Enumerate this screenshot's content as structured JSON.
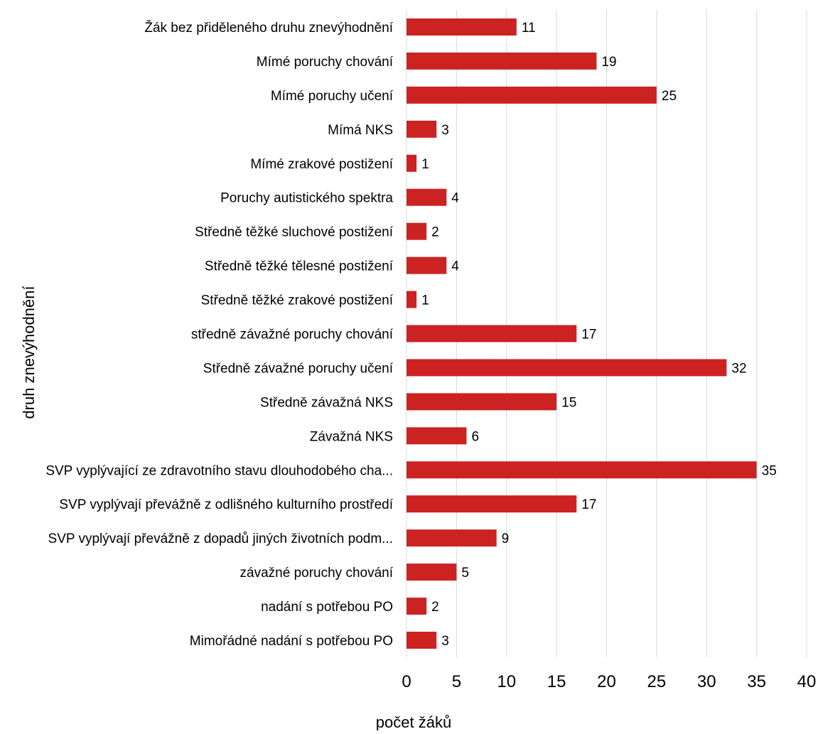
{
  "chart_data": {
    "type": "bar",
    "orientation": "horizontal",
    "categories": [
      "Žák bez přiděleného druhu znevýhodnění",
      "Mímé poruchy chování",
      "Mímé poruchy učení",
      "Mímá NKS",
      "Mímé zrakové postižení",
      "Poruchy autistického spektra",
      "Středně těžké sluchové postižení",
      "Středně těžké tělesné postižení",
      "Středně těžké zrakové postižení",
      "středně závažné poruchy chování",
      "Středně závažné poruchy učení",
      "Středně závažná NKS",
      "Závažná NKS",
      "SVP vyplývající ze zdravotního stavu dlouhodobého cha...",
      "SVP vyplývají převážně z odlišného kulturního prostředí",
      "SVP vyplývají převážně z dopadů jiných životních podm...",
      "závažné poruchy chování",
      "nadání s potřebou PO",
      "Mimořádné nadání s potřebou PO"
    ],
    "values": [
      11,
      19,
      25,
      3,
      1,
      4,
      2,
      4,
      1,
      17,
      32,
      15,
      6,
      35,
      17,
      9,
      5,
      2,
      3
    ],
    "xlabel": "počet žáků",
    "ylabel": "druh znevýhodnění",
    "xlim": [
      0,
      40
    ],
    "xticks": [
      0,
      5,
      10,
      15,
      20,
      25,
      30,
      35,
      40
    ],
    "grid": "vertical",
    "data_labels": true,
    "bar_color": "#cc2222",
    "grid_color": "#d9d9d9"
  }
}
